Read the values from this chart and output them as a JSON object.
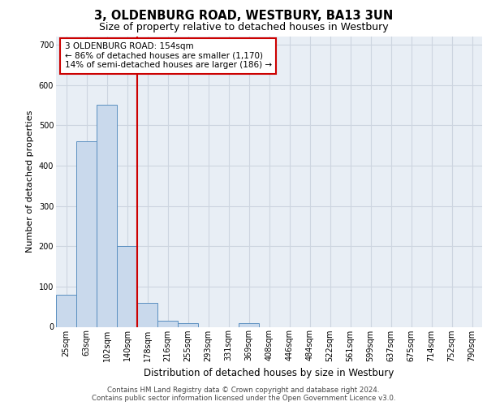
{
  "title": "3, OLDENBURG ROAD, WESTBURY, BA13 3UN",
  "subtitle": "Size of property relative to detached houses in Westbury",
  "xlabel": "Distribution of detached houses by size in Westbury",
  "ylabel": "Number of detached properties",
  "categories": [
    "25sqm",
    "63sqm",
    "102sqm",
    "140sqm",
    "178sqm",
    "216sqm",
    "255sqm",
    "293sqm",
    "331sqm",
    "369sqm",
    "408sqm",
    "446sqm",
    "484sqm",
    "522sqm",
    "561sqm",
    "599sqm",
    "637sqm",
    "675sqm",
    "714sqm",
    "752sqm",
    "790sqm"
  ],
  "values": [
    80,
    460,
    550,
    200,
    60,
    15,
    10,
    0,
    0,
    10,
    0,
    0,
    0,
    0,
    0,
    0,
    0,
    0,
    0,
    0,
    0
  ],
  "bar_color": "#c9d9ec",
  "bar_edge_color": "#5a8fc0",
  "grid_color": "#cdd5e0",
  "background_color": "#e8eef5",
  "property_line_color": "#cc0000",
  "property_line_index": 3.5,
  "annotation_text": "3 OLDENBURG ROAD: 154sqm\n← 86% of detached houses are smaller (1,170)\n14% of semi-detached houses are larger (186) →",
  "annotation_box_edgecolor": "#cc0000",
  "footer_line1": "Contains HM Land Registry data © Crown copyright and database right 2024.",
  "footer_line2": "Contains public sector information licensed under the Open Government Licence v3.0.",
  "ylim": [
    0,
    720
  ],
  "yticks": [
    0,
    100,
    200,
    300,
    400,
    500,
    600,
    700
  ],
  "title_fontsize": 10.5,
  "subtitle_fontsize": 9,
  "ylabel_fontsize": 8,
  "xlabel_fontsize": 8.5,
  "tick_fontsize": 7,
  "annot_fontsize": 7.5,
  "footer_fontsize": 6.2
}
